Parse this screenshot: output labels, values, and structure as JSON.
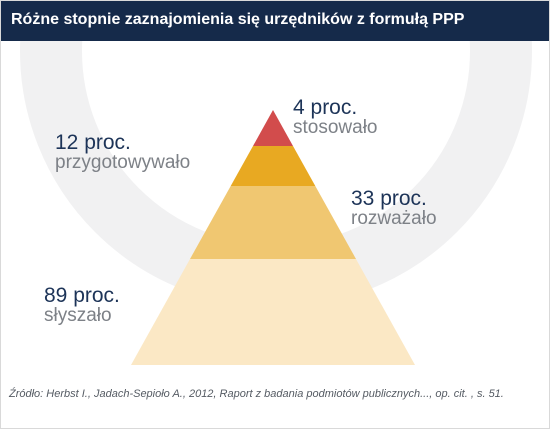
{
  "title": "Różne stopnie zaznajomienia się urzędników z formułą PPP",
  "source": "Źródło: Herbst I., Jadach-Sepioło A., 2012, Raport z badania podmiotów publicznych..., op. cit. , s. 51.",
  "colors": {
    "header_bg": "#152a4a",
    "value_text": "#1d3458",
    "label_text": "#7d8187",
    "watermark": "#f1f1f2"
  },
  "chart_data": {
    "type": "pyramid",
    "unit": "proc.",
    "levels": [
      {
        "value_text": "4 proc.",
        "label": "stosowało",
        "value": 4,
        "color": "#d24c4c"
      },
      {
        "value_text": "12 proc.",
        "label": "przygotowywało",
        "value": 12,
        "color": "#e8a922"
      },
      {
        "value_text": "33 proc.",
        "label": "rozważało",
        "value": 33,
        "color": "#f0c771"
      },
      {
        "value_text": "89 proc.",
        "label": "słyszało",
        "value": 89,
        "color": "#fbe8c5"
      }
    ]
  }
}
